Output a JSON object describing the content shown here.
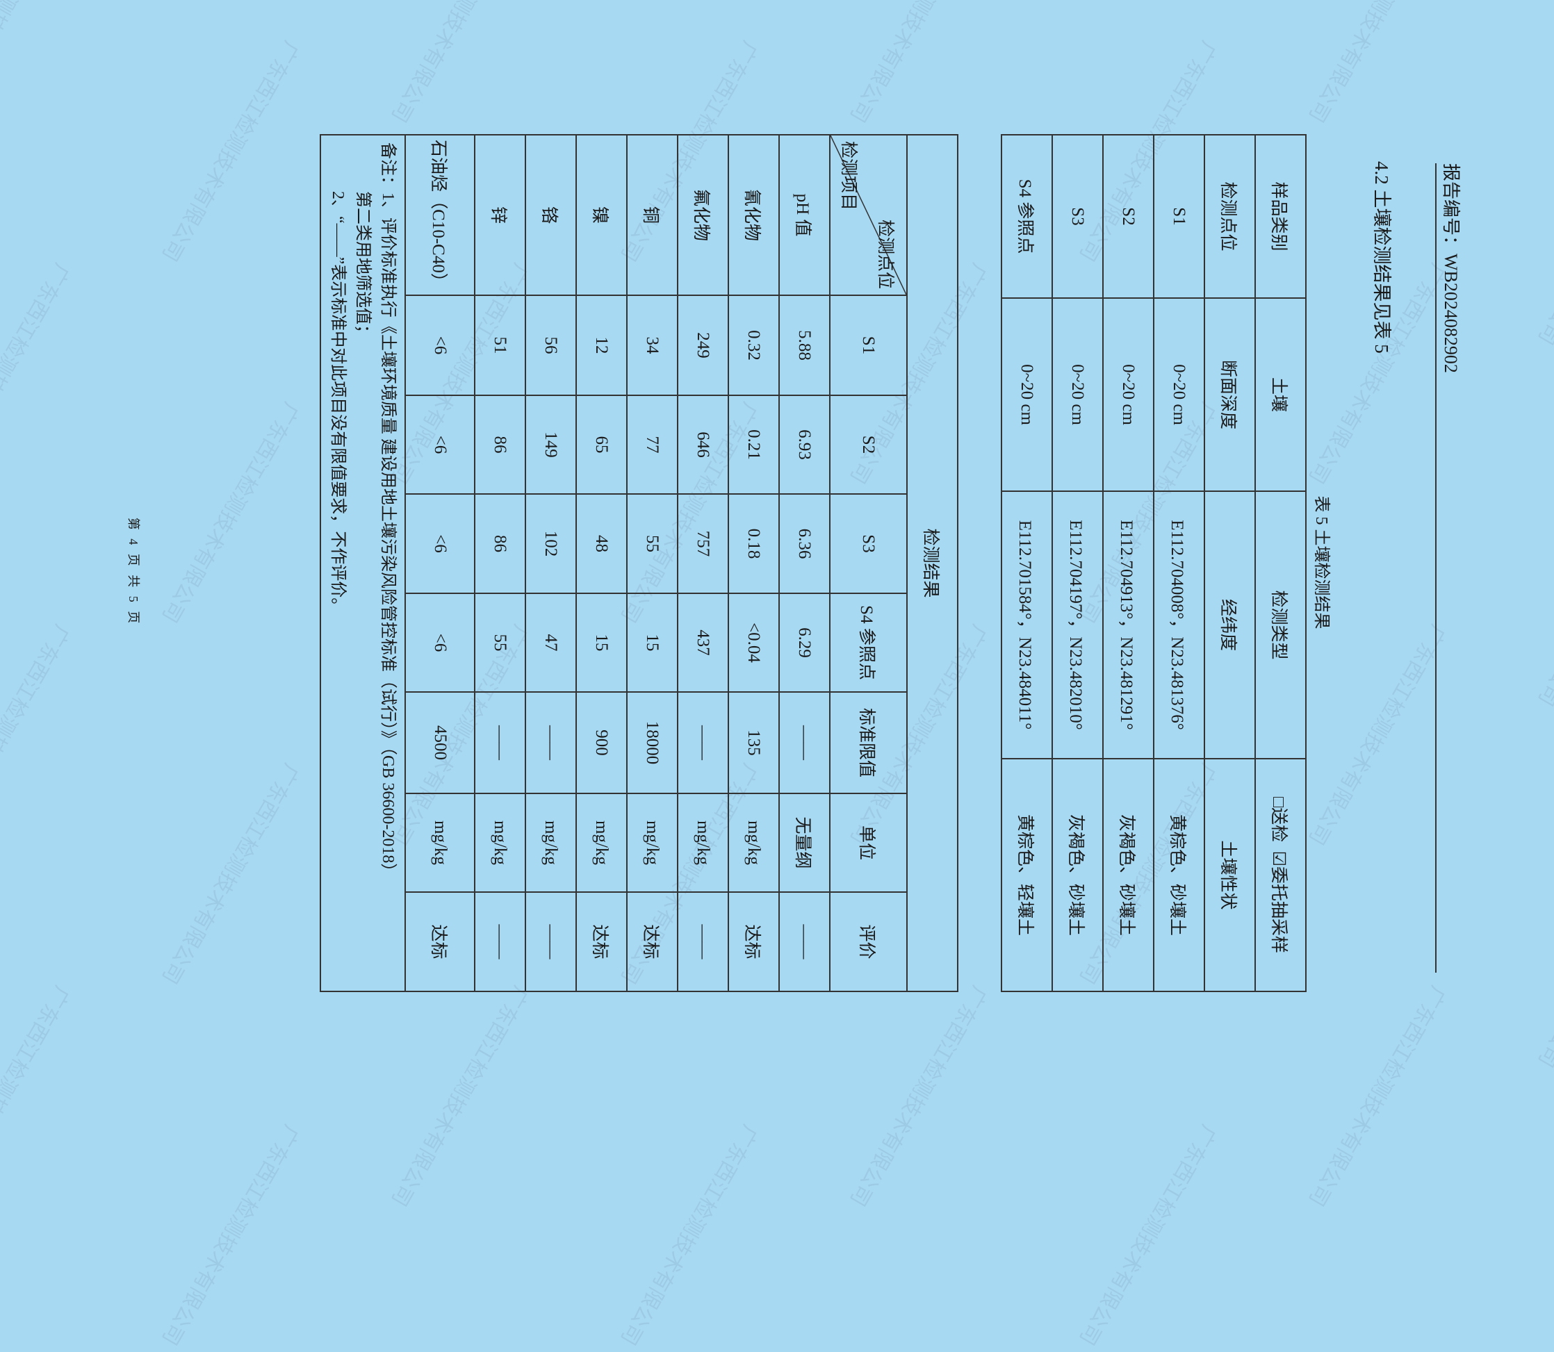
{
  "header": {
    "report_no": "报告编号：WB2024082902"
  },
  "section_title": "4.2 土壤检测结果见表 5",
  "caption": "表 5 土壤检测结果",
  "sample_info": {
    "sample_type_label": "样品类别",
    "sample_type": "土壤",
    "test_type_label": "检测类型",
    "test_type_option1": "□送检",
    "test_type_option2": "☑委托抽采样",
    "headers": [
      "检测点位",
      "断面深度",
      "经纬度",
      "土壤性状"
    ],
    "rows": [
      [
        "S1",
        "0~20 cm",
        "E112.704008°，N23.481376°",
        "黄棕色、砂壤土"
      ],
      [
        "S2",
        "0~20 cm",
        "E112.704913°，N23.481291°",
        "灰褐色、砂壤土"
      ],
      [
        "S3",
        "0~20 cm",
        "E112.704197°，N23.482010°",
        "灰褐色、砂壤土"
      ],
      [
        "S4 参照点",
        "0~20 cm",
        "E112.701584°，N23.484011°",
        "黄棕色、轻壤土"
      ]
    ]
  },
  "results": {
    "title": "检测结果",
    "diag_top": "检测点位",
    "diag_bottom": "检测项目",
    "headers": [
      "S1",
      "S2",
      "S3",
      "S4 参照点",
      "标准限值",
      "单位",
      "评价"
    ],
    "rows": [
      [
        "pH 值",
        "5.88",
        "6.93",
        "6.36",
        "6.29",
        "——",
        "无量纲",
        "——"
      ],
      [
        "氰化物",
        "0.32",
        "0.21",
        "0.18",
        "<0.04",
        "135",
        "mg/kg",
        "达标"
      ],
      [
        "氟化物",
        "249",
        "646",
        "757",
        "437",
        "——",
        "mg/kg",
        "——"
      ],
      [
        "铜",
        "34",
        "77",
        "55",
        "15",
        "18000",
        "mg/kg",
        "达标"
      ],
      [
        "镍",
        "12",
        "65",
        "48",
        "15",
        "900",
        "mg/kg",
        "达标"
      ],
      [
        "铬",
        "56",
        "149",
        "102",
        "47",
        "——",
        "mg/kg",
        "——"
      ],
      [
        "锌",
        "51",
        "86",
        "86",
        "55",
        "——",
        "mg/kg",
        "——"
      ],
      [
        "石油烃（C10-C40）",
        "<6",
        "<6",
        "<6",
        "<6",
        "4500",
        "mg/kg",
        "达标"
      ]
    ]
  },
  "notes": {
    "line1": "备注：1、评价标准执行《土壤环境质量 建设用地土壤污染风险管控标准（试行）》（GB 36600-2018）",
    "line2": "第二类用地筛选值；",
    "line3": "2、“——”表示标准中对此项目没有限值要求，不作评价。"
  },
  "footer": "第 4 页 共 5 页",
  "watermark": "广东西江检测技术有限公司",
  "colors": {
    "background": "#a8d9f3"
  }
}
